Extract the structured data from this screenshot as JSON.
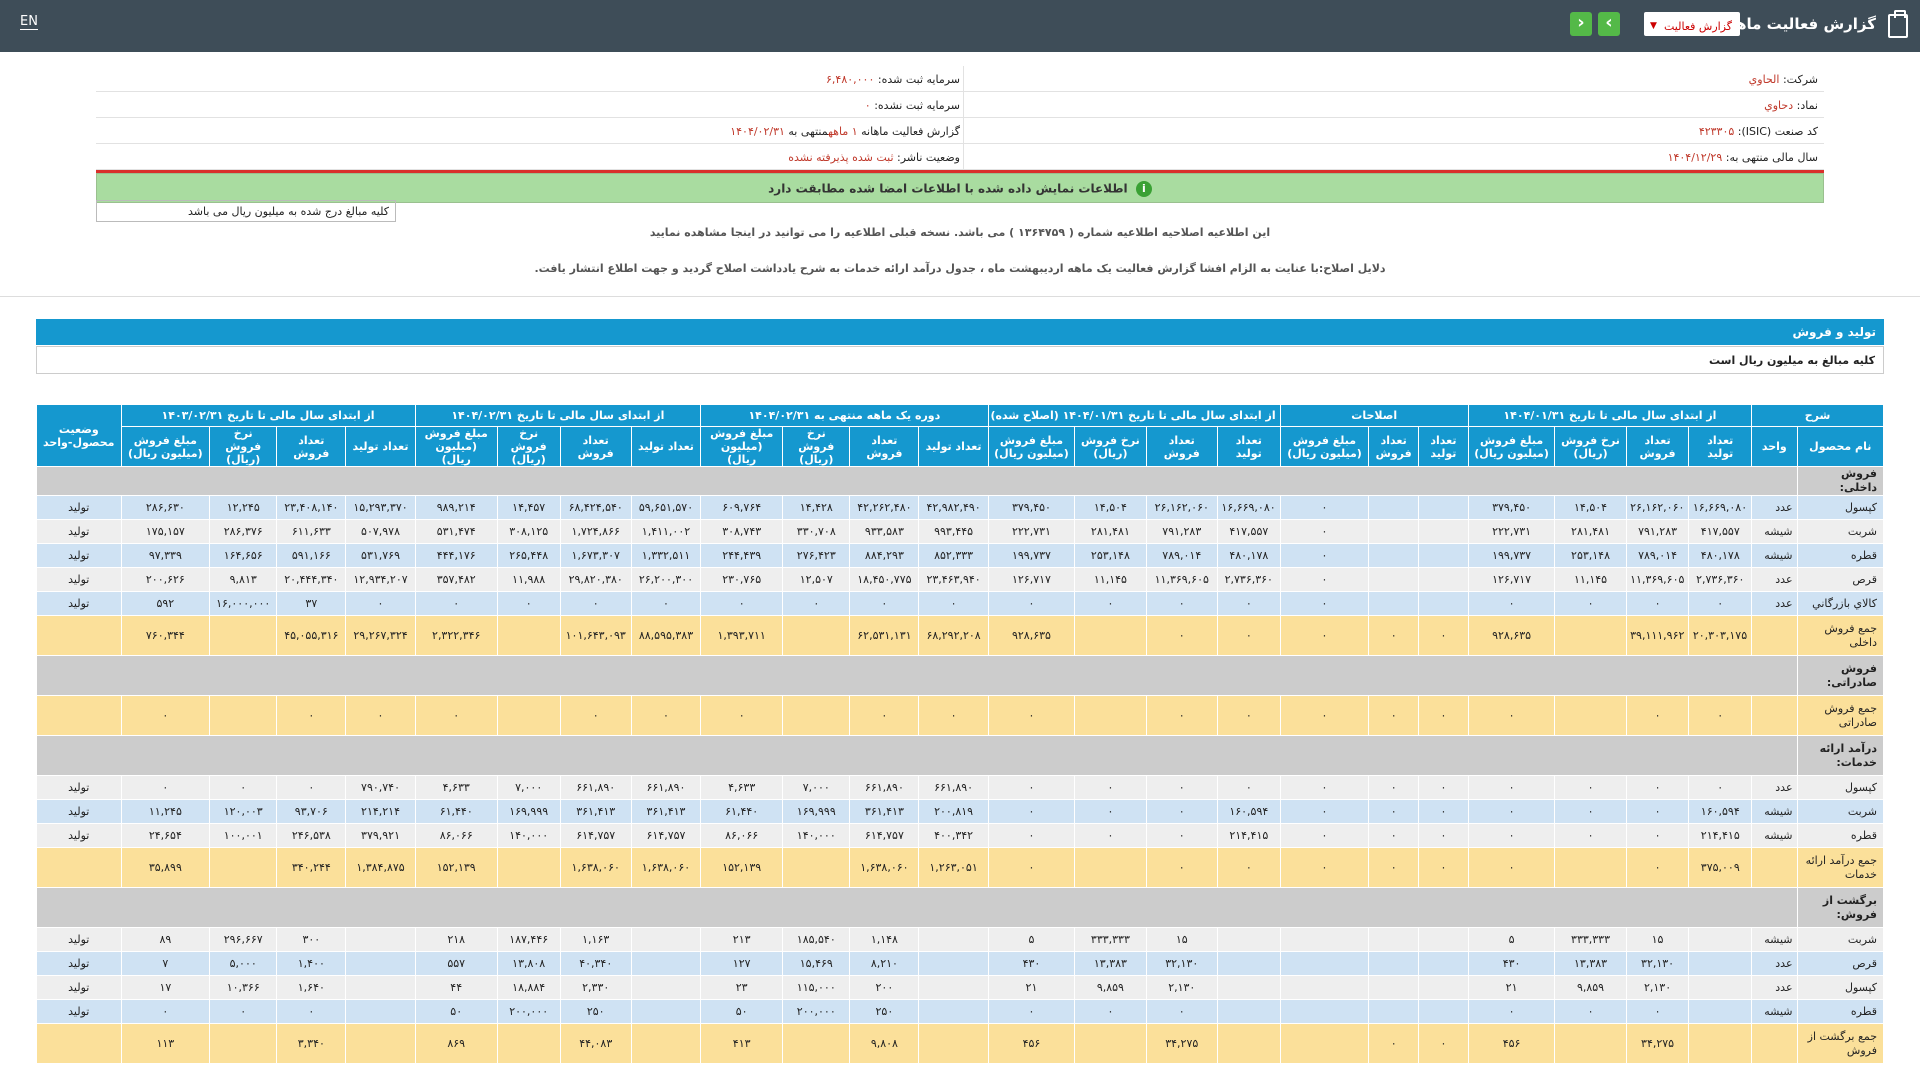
{
  "topbar": {
    "title": "گزارش فعالیت ماهانه",
    "report_select": "گزارش فعالیت",
    "prev": "‹",
    "next": "›",
    "lang": "EN"
  },
  "info": {
    "company_label": "شرکت:",
    "company_value": "الحاوي",
    "registered_capital_label": "سرمایه ثبت شده:",
    "registered_capital_value": "۶,۴۸۰,۰۰۰",
    "symbol_label": "نماد:",
    "symbol_value": "دحاوي",
    "unregistered_capital_label": "سرمایه ثبت نشده:",
    "unregistered_capital_value": "۰",
    "isic_label": "کد صنعت (ISIC):",
    "isic_value": "۴۲۳۳۰۵",
    "report_label": "گزارش فعالیت ماهانه",
    "report_months": "۱ ماهه",
    "report_end_label": "منتهی به",
    "report_end_value": "۱۴۰۴/۰۲/۳۱",
    "fiscal_label": "سال مالی منتهی به:",
    "fiscal_value": "۱۴۰۴/۱۲/۲۹",
    "status_label": "وضعیت ناشر:",
    "status_value": "ثبت شده پذیرفته نشده",
    "match_message": "اطلاعات نمایش داده شده با اطلاعات امضا شده مطابقت دارد",
    "match_icon": "i"
  },
  "unit_note": "کلیه مبالغ درج شده به میلیون ریال می باشد",
  "notice1": "این اطلاعیه اصلاحیه اطلاعیه شماره ( ۱۳۶۴۷۵۹ ) می باشد. نسخه قبلی اطلاعیه را می توانید در اینجا مشاهده نمایید",
  "notice2": "دلایل اصلاح:با عنایت به الزام افشا گزارش فعالیت یک ماهه اردیبهشت ماه ، جدول درآمد ارائه خدمات به شرح یادداشت اصلاح گردید و جهت اطلاع انتشار یافت.",
  "section": {
    "title": "تولید و فروش",
    "subtitle": "کلیه مبالغ به میلیون ریال است"
  },
  "table": {
    "groups": [
      "شرح",
      "از ابتدای سال مالی تا تاریخ ۱۴۰۴/۰۱/۳۱",
      "اصلاحات",
      "از ابتدای سال مالی تا تاریخ ۱۴۰۴/۰۱/۳۱ (اصلاح شده)",
      "دوره یک ماهه منتهی به ۱۴۰۴/۰۲/۳۱",
      "از ابتدای سال مالی تا تاریخ ۱۴۰۴/۰۲/۳۱",
      "از ابتدای سال مالی تا تاریخ ۱۴۰۳/۰۲/۳۱",
      "وضعیت محصول-واحد"
    ],
    "subheaders": [
      "نام محصول",
      "واحد",
      "تعداد تولید",
      "تعداد فروش",
      "نرخ فروش (ریال)",
      "مبلغ فروش (میلیون ریال)",
      "تعداد تولید",
      "تعداد فروش",
      "مبلغ فروش (میلیون ریال)",
      "تعداد تولید",
      "تعداد فروش",
      "نرخ فروش (ریال)",
      "مبلغ فروش (میلیون ریال)",
      "تعداد تولید",
      "تعداد فروش",
      "نرخ فروش (ریال)",
      "مبلغ فروش (میلیون ریال)",
      "تعداد تولید",
      "تعداد فروش",
      "نرخ فروش (ریال)",
      "مبلغ فروش (میلیون ریال)",
      "تعداد تولید",
      "تعداد فروش",
      "نرخ فروش (ریال)",
      "مبلغ فروش (میلیون ریال)"
    ],
    "rows": [
      {
        "type": "sec first",
        "cells": [
          "فروش داخلی:"
        ]
      },
      {
        "type": "bl",
        "cells": [
          "کپسول",
          "عدد",
          "۱۶,۶۶۹,۰۸۰",
          "۲۶,۱۶۲,۰۶۰",
          "۱۴,۵۰۴",
          "۳۷۹,۴۵۰",
          "",
          "",
          "۰",
          "۱۶,۶۶۹,۰۸۰",
          "۲۶,۱۶۲,۰۶۰",
          "۱۴,۵۰۴",
          "۳۷۹,۴۵۰",
          "۴۲,۹۸۲,۴۹۰",
          "۴۲,۲۶۲,۴۸۰",
          "۱۴,۴۲۸",
          "۶۰۹,۷۶۴",
          "۵۹,۶۵۱,۵۷۰",
          "۶۸,۴۲۴,۵۴۰",
          "۱۴,۴۵۷",
          "۹۸۹,۲۱۴",
          "۱۵,۲۹۳,۳۷۰",
          "۲۳,۴۰۸,۱۴۰",
          "۱۲,۲۴۵",
          "۲۸۶,۶۳۰",
          "تولید"
        ]
      },
      {
        "type": "wh",
        "cells": [
          "شربت",
          "شیشه",
          "۴۱۷,۵۵۷",
          "۷۹۱,۲۸۳",
          "۲۸۱,۴۸۱",
          "۲۲۲,۷۳۱",
          "",
          "",
          "۰",
          "۴۱۷,۵۵۷",
          "۷۹۱,۲۸۳",
          "۲۸۱,۴۸۱",
          "۲۲۲,۷۳۱",
          "۹۹۳,۴۴۵",
          "۹۳۳,۵۸۳",
          "۳۳۰,۷۰۸",
          "۳۰۸,۷۴۳",
          "۱,۴۱۱,۰۰۲",
          "۱,۷۲۴,۸۶۶",
          "۳۰۸,۱۲۵",
          "۵۳۱,۴۷۴",
          "۵۰۷,۹۷۸",
          "۶۱۱,۶۳۳",
          "۲۸۶,۳۷۶",
          "۱۷۵,۱۵۷",
          "تولید"
        ]
      },
      {
        "type": "bl",
        "cells": [
          "قطره",
          "شیشه",
          "۴۸۰,۱۷۸",
          "۷۸۹,۰۱۴",
          "۲۵۳,۱۴۸",
          "۱۹۹,۷۳۷",
          "",
          "",
          "۰",
          "۴۸۰,۱۷۸",
          "۷۸۹,۰۱۴",
          "۲۵۳,۱۴۸",
          "۱۹۹,۷۳۷",
          "۸۵۲,۳۳۳",
          "۸۸۴,۲۹۳",
          "۲۷۶,۴۲۳",
          "۲۴۴,۴۳۹",
          "۱,۳۳۲,۵۱۱",
          "۱,۶۷۳,۳۰۷",
          "۲۶۵,۴۴۸",
          "۴۴۴,۱۷۶",
          "۵۳۱,۷۶۹",
          "۵۹۱,۱۶۶",
          "۱۶۴,۶۵۶",
          "۹۷,۳۳۹",
          "تولید"
        ]
      },
      {
        "type": "wh",
        "cells": [
          "قرص",
          "عدد",
          "۲,۷۳۶,۳۶۰",
          "۱۱,۳۶۹,۶۰۵",
          "۱۱,۱۴۵",
          "۱۲۶,۷۱۷",
          "",
          "",
          "۰",
          "۲,۷۳۶,۳۶۰",
          "۱۱,۳۶۹,۶۰۵",
          "۱۱,۱۴۵",
          "۱۲۶,۷۱۷",
          "۲۳,۴۶۳,۹۴۰",
          "۱۸,۴۵۰,۷۷۵",
          "۱۲,۵۰۷",
          "۲۳۰,۷۶۵",
          "۲۶,۲۰۰,۳۰۰",
          "۲۹,۸۲۰,۳۸۰",
          "۱۱,۹۸۸",
          "۳۵۷,۴۸۲",
          "۱۲,۹۳۴,۲۰۷",
          "۲۰,۴۴۴,۳۴۰",
          "۹,۸۱۳",
          "۲۰۰,۶۲۶",
          "تولید"
        ]
      },
      {
        "type": "bl",
        "cells": [
          "کالاي بازرگاني",
          "عدد",
          "۰",
          "۰",
          "۰",
          "۰",
          "",
          "",
          "۰",
          "۰",
          "۰",
          "۰",
          "۰",
          "۰",
          "۰",
          "۰",
          "۰",
          "۰",
          "۰",
          "۰",
          "۰",
          "۰",
          "۳۷",
          "۱۶,۰۰۰,۰۰۰",
          "۵۹۲",
          "تولید"
        ]
      },
      {
        "type": "sum",
        "cells": [
          "جمع فروش داخلی",
          "",
          "۲۰,۳۰۳,۱۷۵",
          "۳۹,۱۱۱,۹۶۲",
          "",
          "۹۲۸,۶۳۵",
          "۰",
          "۰",
          "۰",
          "۰",
          "۰",
          "",
          "۹۲۸,۶۳۵",
          "۶۸,۲۹۲,۲۰۸",
          "۶۲,۵۳۱,۱۳۱",
          "",
          "۱,۳۹۳,۷۱۱",
          "۸۸,۵۹۵,۳۸۳",
          "۱۰۱,۶۴۳,۰۹۳",
          "",
          "۲,۳۲۲,۳۴۶",
          "۲۹,۲۶۷,۳۲۴",
          "۴۵,۰۵۵,۳۱۶",
          "",
          "۷۶۰,۳۴۴",
          ""
        ]
      },
      {
        "type": "sec",
        "cells": [
          "فروش صادراتی:"
        ]
      },
      {
        "type": "sum",
        "cells": [
          "جمع فروش صادراتی",
          "",
          "۰",
          "۰",
          "",
          "۰",
          "۰",
          "۰",
          "۰",
          "۰",
          "۰",
          "",
          "۰",
          "۰",
          "۰",
          "",
          "۰",
          "۰",
          "۰",
          "",
          "۰",
          "۰",
          "۰",
          "",
          "۰",
          ""
        ]
      },
      {
        "type": "sec",
        "cells": [
          "درآمد ارائه خدمات:"
        ]
      },
      {
        "type": "wh",
        "cells": [
          "کپسول",
          "عدد",
          "۰",
          "۰",
          "۰",
          "۰",
          "۰",
          "۰",
          "۰",
          "۰",
          "۰",
          "۰",
          "۰",
          "۶۶۱,۸۹۰",
          "۶۶۱,۸۹۰",
          "۷,۰۰۰",
          "۴,۶۳۳",
          "۶۶۱,۸۹۰",
          "۶۶۱,۸۹۰",
          "۷,۰۰۰",
          "۴,۶۳۳",
          "۷۹۰,۷۴۰",
          "۰",
          "۰",
          "۰",
          "تولید"
        ]
      },
      {
        "type": "bl",
        "cells": [
          "شربت",
          "شیشه",
          "۱۶۰,۵۹۴",
          "۰",
          "۰",
          "۰",
          "۰",
          "۰",
          "۰",
          "۱۶۰,۵۹۴",
          "۰",
          "۰",
          "۰",
          "۲۰۰,۸۱۹",
          "۳۶۱,۴۱۳",
          "۱۶۹,۹۹۹",
          "۶۱,۴۴۰",
          "۳۶۱,۴۱۳",
          "۳۶۱,۴۱۳",
          "۱۶۹,۹۹۹",
          "۶۱,۴۴۰",
          "۲۱۴,۲۱۴",
          "۹۳,۷۰۶",
          "۱۲۰,۰۰۳",
          "۱۱,۲۴۵",
          "تولید"
        ]
      },
      {
        "type": "wh",
        "cells": [
          "قطره",
          "شیشه",
          "۲۱۴,۴۱۵",
          "۰",
          "۰",
          "۰",
          "۰",
          "۰",
          "۰",
          "۲۱۴,۴۱۵",
          "۰",
          "۰",
          "۰",
          "۴۰۰,۳۴۲",
          "۶۱۴,۷۵۷",
          "۱۴۰,۰۰۰",
          "۸۶,۰۶۶",
          "۶۱۴,۷۵۷",
          "۶۱۴,۷۵۷",
          "۱۴۰,۰۰۰",
          "۸۶,۰۶۶",
          "۳۷۹,۹۲۱",
          "۲۴۶,۵۳۸",
          "۱۰۰,۰۰۱",
          "۲۴,۶۵۴",
          "تولید"
        ]
      },
      {
        "type": "sum",
        "cells": [
          "جمع درآمد ارائه خدمات",
          "",
          "۳۷۵,۰۰۹",
          "۰",
          "",
          "۰",
          "۰",
          "۰",
          "۰",
          "۰",
          "۰",
          "",
          "۰",
          "۱,۲۶۳,۰۵۱",
          "۱,۶۳۸,۰۶۰",
          "",
          "۱۵۲,۱۳۹",
          "۱,۶۳۸,۰۶۰",
          "۱,۶۳۸,۰۶۰",
          "",
          "۱۵۲,۱۳۹",
          "۱,۳۸۴,۸۷۵",
          "۳۴۰,۲۴۴",
          "",
          "۳۵,۸۹۹",
          ""
        ]
      },
      {
        "type": "sec",
        "cells": [
          "برگشت از فروش:"
        ]
      },
      {
        "type": "wh",
        "cells": [
          "شربت",
          "شیشه",
          "",
          "۱۵",
          "۳۳۳,۳۳۳",
          "۵",
          "",
          "",
          "",
          "",
          "۱۵",
          "۳۳۳,۳۳۳",
          "۵",
          "",
          "۱,۱۴۸",
          "۱۸۵,۵۴۰",
          "۲۱۳",
          "",
          "۱,۱۶۳",
          "۱۸۷,۴۴۶",
          "۲۱۸",
          "",
          "۳۰۰",
          "۲۹۶,۶۶۷",
          "۸۹",
          "تولید"
        ]
      },
      {
        "type": "bl",
        "cells": [
          "قرص",
          "عدد",
          "",
          "۳۲,۱۳۰",
          "۱۳,۳۸۳",
          "۴۳۰",
          "",
          "",
          "",
          "",
          "۳۲,۱۳۰",
          "۱۳,۳۸۳",
          "۴۳۰",
          "",
          "۸,۲۱۰",
          "۱۵,۴۶۹",
          "۱۲۷",
          "",
          "۴۰,۳۴۰",
          "۱۳,۸۰۸",
          "۵۵۷",
          "",
          "۱,۴۰۰",
          "۵,۰۰۰",
          "۷",
          "تولید"
        ]
      },
      {
        "type": "wh",
        "cells": [
          "کپسول",
          "عدد",
          "",
          "۲,۱۳۰",
          "۹,۸۵۹",
          "۲۱",
          "",
          "",
          "",
          "",
          "۲,۱۳۰",
          "۹,۸۵۹",
          "۲۱",
          "",
          "۲۰۰",
          "۱۱۵,۰۰۰",
          "۲۳",
          "",
          "۲,۳۳۰",
          "۱۸,۸۸۴",
          "۴۴",
          "",
          "۱,۶۴۰",
          "۱۰,۳۶۶",
          "۱۷",
          "تولید"
        ]
      },
      {
        "type": "bl",
        "cells": [
          "قطره",
          "شیشه",
          "",
          "۰",
          "۰",
          "۰",
          "",
          "",
          "",
          "",
          "۰",
          "۰",
          "۰",
          "",
          "۲۵۰",
          "۲۰۰,۰۰۰",
          "۵۰",
          "",
          "۲۵۰",
          "۲۰۰,۰۰۰",
          "۵۰",
          "",
          "۰",
          "۰",
          "۰",
          "تولید"
        ]
      },
      {
        "type": "sum",
        "cells": [
          "جمع برگشت از فروش",
          "",
          "",
          "۳۴,۲۷۵",
          "",
          "۴۵۶",
          "۰",
          "۰",
          "",
          "",
          "۳۴,۲۷۵",
          "",
          "۴۵۶",
          "",
          "۹,۸۰۸",
          "",
          "۴۱۳",
          "",
          "۴۴,۰۸۳",
          "",
          "۸۶۹",
          "",
          "۳,۳۴۰",
          "",
          "۱۱۳",
          ""
        ]
      }
    ]
  }
}
